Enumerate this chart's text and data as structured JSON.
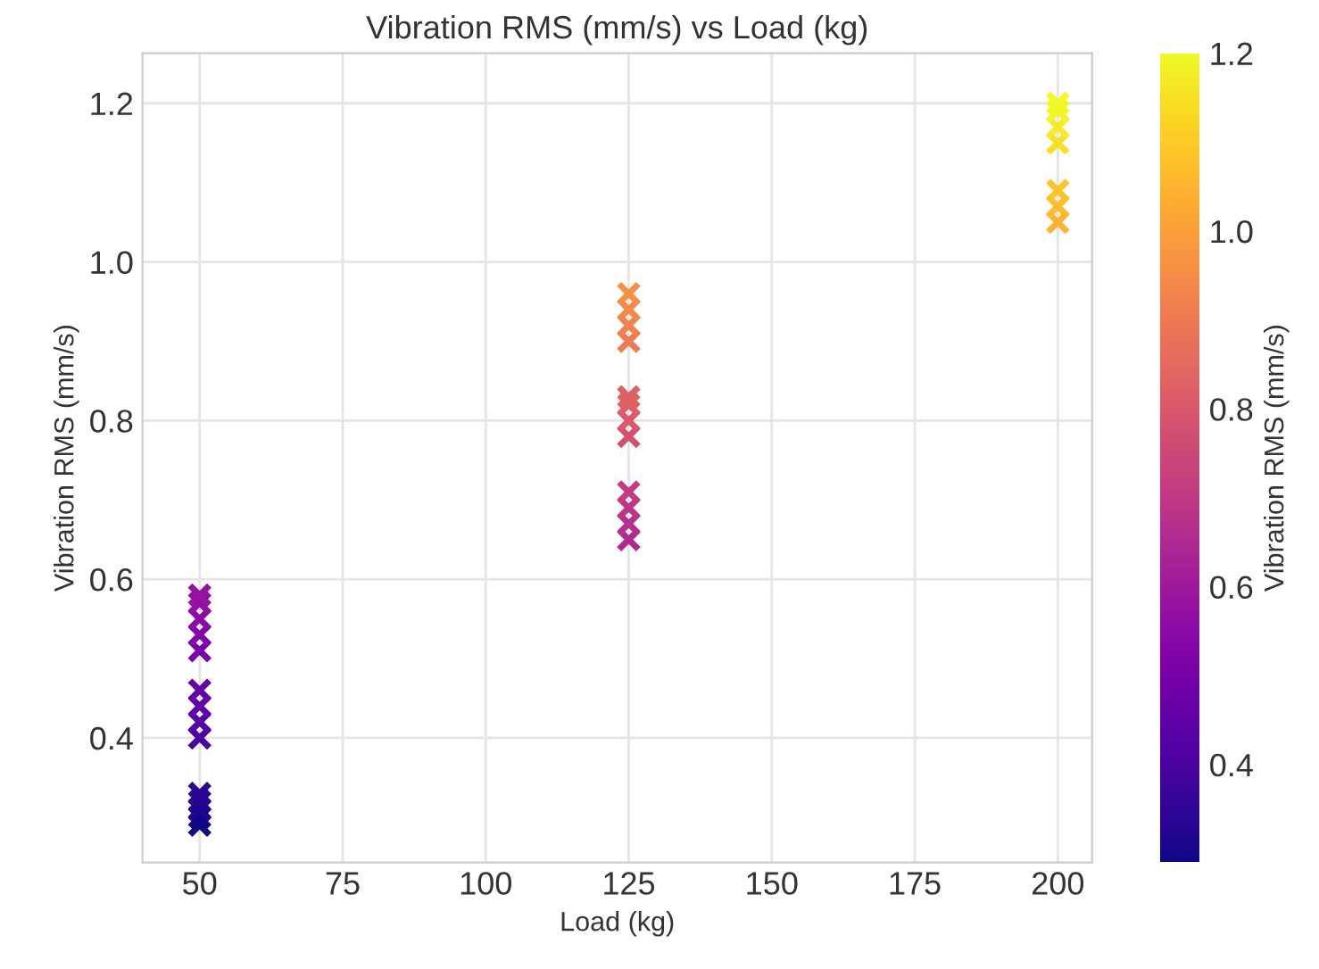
{
  "chart_data": {
    "type": "scatter",
    "title": "Vibration RMS (mm/s) vs Load (kg)",
    "xlabel": "Load (kg)",
    "ylabel": "Vibration RMS (mm/s)",
    "clabel": "Vibration RMS (mm/s)",
    "x": [
      50,
      50,
      50,
      50,
      50,
      50,
      50,
      50,
      50,
      50,
      50,
      50,
      50,
      50,
      125,
      125,
      125,
      125,
      125,
      125,
      125,
      125,
      125,
      125,
      125,
      125,
      200,
      200,
      200,
      200,
      200,
      200,
      200
    ],
    "values": [
      0.29,
      0.3,
      0.31,
      0.32,
      0.33,
      0.4,
      0.42,
      0.44,
      0.46,
      0.51,
      0.53,
      0.55,
      0.57,
      0.58,
      0.65,
      0.67,
      0.69,
      0.71,
      0.78,
      0.8,
      0.82,
      0.83,
      0.9,
      0.92,
      0.94,
      0.96,
      1.05,
      1.07,
      1.09,
      1.15,
      1.17,
      1.19,
      1.2
    ],
    "cvalues": [
      0.29,
      0.3,
      0.31,
      0.32,
      0.33,
      0.4,
      0.42,
      0.44,
      0.46,
      0.51,
      0.53,
      0.55,
      0.57,
      0.58,
      0.65,
      0.67,
      0.69,
      0.71,
      0.78,
      0.8,
      0.82,
      0.83,
      0.9,
      0.92,
      0.94,
      0.96,
      1.05,
      1.07,
      1.09,
      1.15,
      1.17,
      1.19,
      1.2
    ],
    "clim": [
      0.29,
      1.2
    ],
    "cticks": [
      0.4,
      0.6,
      0.8,
      {
        "value": 1.0,
        "label": "1.0"
      },
      1.2
    ],
    "marker": "cross",
    "grid": true,
    "legend": false,
    "xlim": [
      40,
      206
    ],
    "xticks": [
      50,
      75,
      100,
      125,
      150,
      175,
      200
    ],
    "ylim": [
      0.243,
      1.263
    ],
    "yticks": [
      0.4,
      0.6,
      0.8,
      {
        "value": 1.0,
        "label": "1.0"
      },
      1.2
    ]
  }
}
